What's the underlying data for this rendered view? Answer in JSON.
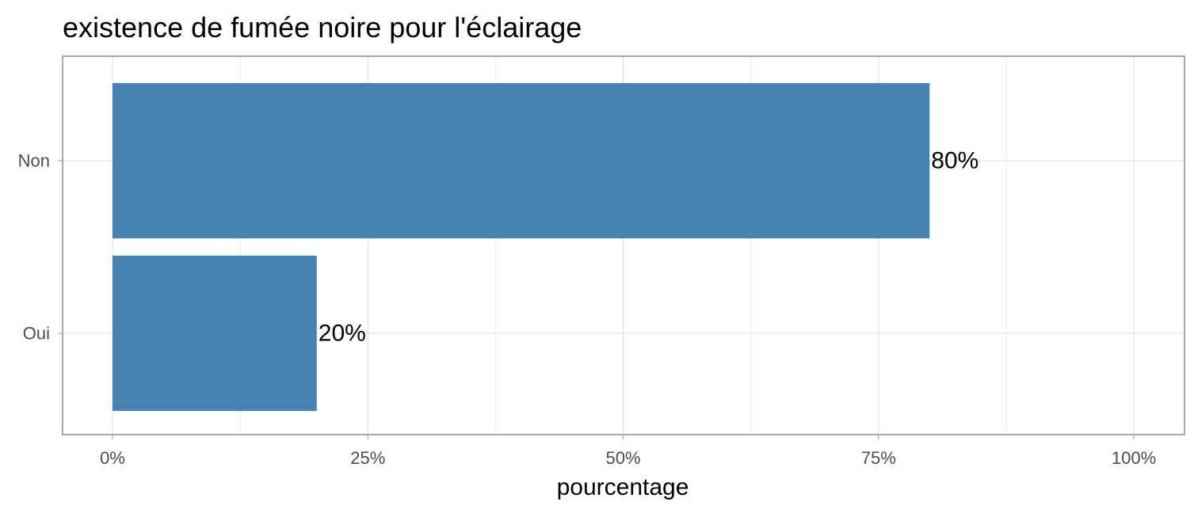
{
  "chart_data": {
    "type": "bar",
    "orientation": "horizontal",
    "title": "existence de fumée noire pour l'éclairage",
    "xlabel": "pourcentage",
    "ylabel": "",
    "categories": [
      "Non",
      "Oui"
    ],
    "values": [
      80,
      20
    ],
    "data_labels": [
      "80%",
      "20%"
    ],
    "xlim": [
      0,
      100
    ],
    "x_ticks": [
      0,
      25,
      50,
      75,
      100
    ],
    "x_tick_labels": [
      "0%",
      "25%",
      "50%",
      "75%",
      "100%"
    ],
    "grid": true,
    "legend": "none",
    "colors": {
      "bar": "#4682B4",
      "panel_border": "#A8A8A8",
      "grid": "#DEDEDE"
    }
  }
}
